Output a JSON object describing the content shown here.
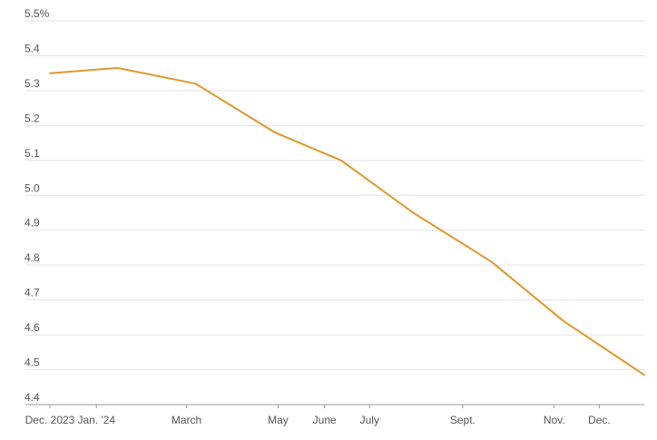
{
  "chart_data": {
    "type": "line",
    "title": "",
    "xlabel": "",
    "ylabel": "",
    "ylim": [
      4.4,
      5.5
    ],
    "y_ticks": [
      {
        "value": 5.5,
        "label": "5.5%"
      },
      {
        "value": 5.4,
        "label": "5.4"
      },
      {
        "value": 5.3,
        "label": "5.3"
      },
      {
        "value": 5.2,
        "label": "5.2"
      },
      {
        "value": 5.1,
        "label": "5.1"
      },
      {
        "value": 5.0,
        "label": "5.0"
      },
      {
        "value": 4.9,
        "label": "4.9"
      },
      {
        "value": 4.8,
        "label": "4.8"
      },
      {
        "value": 4.7,
        "label": "4.7"
      },
      {
        "value": 4.6,
        "label": "4.6"
      },
      {
        "value": 4.5,
        "label": "4.5"
      },
      {
        "value": 4.4,
        "label": "4.4"
      }
    ],
    "x_ticks": [
      {
        "value": "2023-12-01",
        "label": "Dec. 2023"
      },
      {
        "value": "2024-01-01",
        "label": "Jan. '24"
      },
      {
        "value": "2024-03-01",
        "label": "March"
      },
      {
        "value": "2024-05-01",
        "label": "May"
      },
      {
        "value": "2024-06-01",
        "label": "June"
      },
      {
        "value": "2024-07-01",
        "label": "July"
      },
      {
        "value": "2024-09-01",
        "label": "Sept."
      },
      {
        "value": "2024-11-01",
        "label": "Nov."
      },
      {
        "value": "2024-12-01",
        "label": "Dec."
      }
    ],
    "xlim": [
      "2023-12-01",
      "2024-12-31"
    ],
    "grid": true,
    "series": [
      {
        "color": "#e0972b",
        "x": [
          "2023-12-01",
          "2024-01-15",
          "2024-03-07",
          "2024-04-29",
          "2024-06-12",
          "2024-07-30",
          "2024-09-20",
          "2024-11-07",
          "2024-12-31"
        ],
        "y": [
          5.35,
          5.365,
          5.32,
          5.18,
          5.1,
          4.95,
          4.81,
          4.64,
          4.485
        ]
      }
    ]
  }
}
